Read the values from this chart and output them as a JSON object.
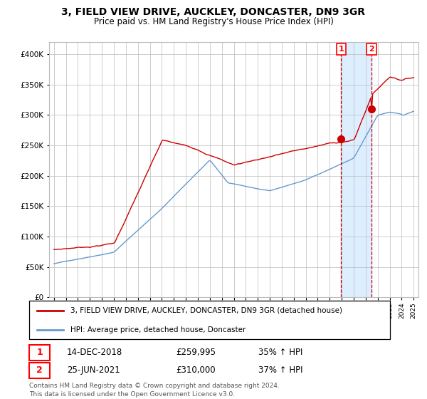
{
  "title": "3, FIELD VIEW DRIVE, AUCKLEY, DONCASTER, DN9 3GR",
  "subtitle": "Price paid vs. HM Land Registry's House Price Index (HPI)",
  "hpi_label": "HPI: Average price, detached house, Doncaster",
  "property_label": "3, FIELD VIEW DRIVE, AUCKLEY, DONCASTER, DN9 3GR (detached house)",
  "sale1_label": "14-DEC-2018",
  "sale1_price": "£259,995",
  "sale1_hpi": "35% ↑ HPI",
  "sale2_label": "25-JUN-2021",
  "sale2_price": "£310,000",
  "sale2_hpi": "37% ↑ HPI",
  "sale1_date": 2018.958,
  "sale2_date": 2021.479,
  "sale1_value": 259995,
  "sale2_value": 310000,
  "ylim_min": 0,
  "ylim_max": 420000,
  "xlim_min": 1994.6,
  "xlim_max": 2025.4,
  "property_color": "#cc0000",
  "hpi_color": "#6699cc",
  "vline_color": "#cc0000",
  "shade_color": "#ddeeff",
  "background_color": "#ffffff",
  "grid_color": "#bbbbbb",
  "footer": "Contains HM Land Registry data © Crown copyright and database right 2024.\nThis data is licensed under the Open Government Licence v3.0."
}
